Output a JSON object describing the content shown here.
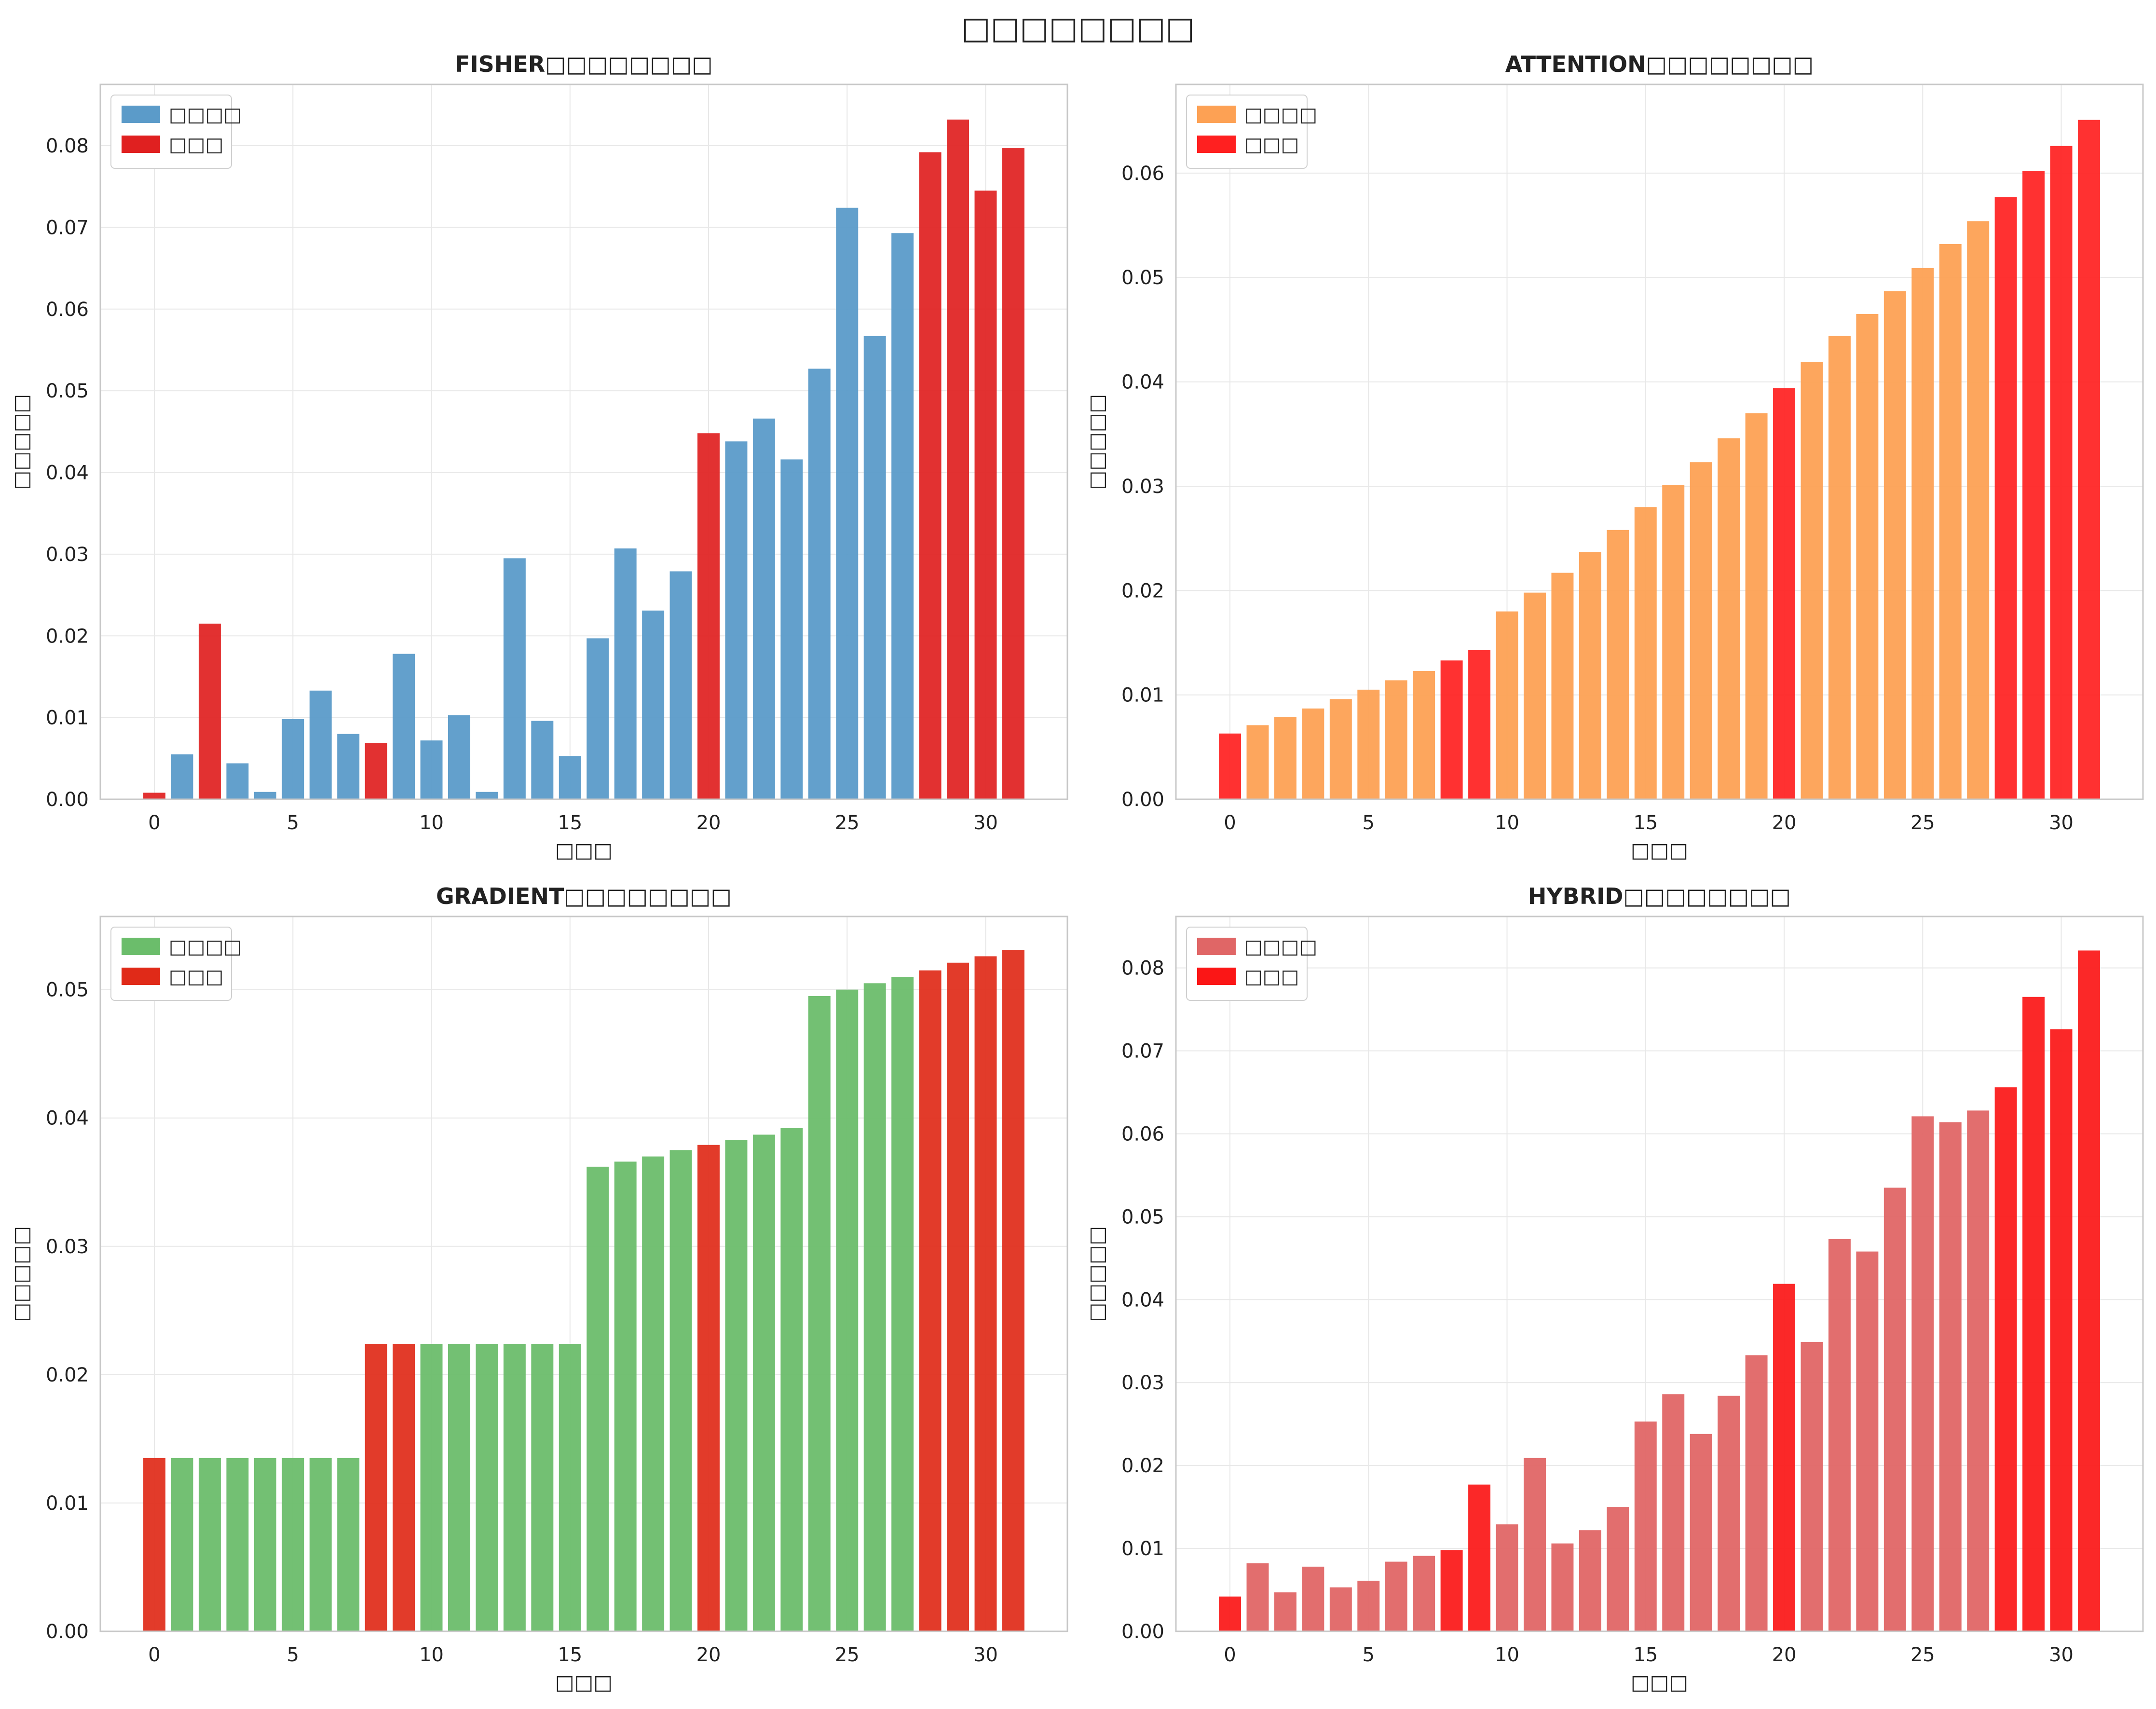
{
  "figure": {
    "title": "□□□□□□□□"
  },
  "chart_data": [
    {
      "type": "bar",
      "title": "FISHER□□□□□□□□",
      "xlabel": "□□□",
      "ylabel": "□□□□□",
      "ylim": [
        0,
        0.0875
      ],
      "yticks": [
        0.0,
        0.01,
        0.02,
        0.03,
        0.04,
        0.05,
        0.06,
        0.07,
        0.08
      ],
      "xlim": [
        -1.95,
        32.95
      ],
      "xticks": [
        0,
        5,
        10,
        15,
        20,
        25,
        30
      ],
      "grid": true,
      "legend": {
        "position": "top-left",
        "entries": [
          "□□□□",
          "□□□"
        ]
      },
      "colors": {
        "base": "#5b9bc9",
        "selected": "#e02020"
      },
      "categories": [
        0,
        1,
        2,
        3,
        4,
        5,
        6,
        7,
        8,
        9,
        10,
        11,
        12,
        13,
        14,
        15,
        16,
        17,
        18,
        19,
        20,
        21,
        22,
        23,
        24,
        25,
        26,
        27,
        28,
        29,
        30,
        31
      ],
      "values": [
        0.0008,
        0.0055,
        0.0215,
        0.0044,
        0.0009,
        0.0098,
        0.0133,
        0.008,
        0.0069,
        0.0178,
        0.0072,
        0.0103,
        0.0009,
        0.0295,
        0.0096,
        0.0053,
        0.0197,
        0.0307,
        0.0231,
        0.0279,
        0.0448,
        0.0438,
        0.0466,
        0.0416,
        0.0527,
        0.0724,
        0.0567,
        0.0693,
        0.0792,
        0.0832,
        0.0745,
        0.0797
      ],
      "selected": [
        0,
        2,
        8,
        20,
        28,
        29,
        30,
        31
      ]
    },
    {
      "type": "bar",
      "title": "ATTENTION□□□□□□□□",
      "xlabel": "□□□",
      "ylabel": "□□□□□",
      "ylim": [
        0,
        0.0685
      ],
      "yticks": [
        0.0,
        0.01,
        0.02,
        0.03,
        0.04,
        0.05,
        0.06
      ],
      "xlim": [
        -1.95,
        32.95
      ],
      "xticks": [
        0,
        5,
        10,
        15,
        20,
        25,
        30
      ],
      "grid": true,
      "legend": {
        "position": "top-left",
        "entries": [
          "□□□□",
          "□□□"
        ]
      },
      "colors": {
        "base": "#fda154",
        "selected": "#ff2020"
      },
      "categories": [
        0,
        1,
        2,
        3,
        4,
        5,
        6,
        7,
        8,
        9,
        10,
        11,
        12,
        13,
        14,
        15,
        16,
        17,
        18,
        19,
        20,
        21,
        22,
        23,
        24,
        25,
        26,
        27,
        28,
        29,
        30,
        31
      ],
      "values": [
        0.0063,
        0.0071,
        0.0079,
        0.0087,
        0.0096,
        0.0105,
        0.0114,
        0.0123,
        0.0133,
        0.0143,
        0.018,
        0.0198,
        0.0217,
        0.0237,
        0.0258,
        0.028,
        0.0301,
        0.0323,
        0.0346,
        0.037,
        0.0394,
        0.0419,
        0.0444,
        0.0465,
        0.0487,
        0.0509,
        0.0532,
        0.0554,
        0.0577,
        0.0602,
        0.0626,
        0.0651
      ],
      "selected": [
        0,
        8,
        9,
        20,
        28,
        29,
        30,
        31
      ]
    },
    {
      "type": "bar",
      "title": "GRADIENT□□□□□□□□",
      "xlabel": "□□□",
      "ylabel": "□□□□□",
      "ylim": [
        0,
        0.0557
      ],
      "yticks": [
        0.0,
        0.01,
        0.02,
        0.03,
        0.04,
        0.05
      ],
      "xlim": [
        -1.95,
        32.95
      ],
      "xticks": [
        0,
        5,
        10,
        15,
        20,
        25,
        30
      ],
      "grid": true,
      "legend": {
        "position": "top-left",
        "entries": [
          "□□□□",
          "□□□"
        ]
      },
      "colors": {
        "base": "#6bbd6b",
        "selected": "#e02a18"
      },
      "categories": [
        0,
        1,
        2,
        3,
        4,
        5,
        6,
        7,
        8,
        9,
        10,
        11,
        12,
        13,
        14,
        15,
        16,
        17,
        18,
        19,
        20,
        21,
        22,
        23,
        24,
        25,
        26,
        27,
        28,
        29,
        30,
        31
      ],
      "values": [
        0.0135,
        0.0135,
        0.0135,
        0.0135,
        0.0135,
        0.0135,
        0.0135,
        0.0135,
        0.0224,
        0.0224,
        0.0224,
        0.0224,
        0.0224,
        0.0224,
        0.0224,
        0.0224,
        0.0362,
        0.0366,
        0.037,
        0.0375,
        0.0379,
        0.0383,
        0.0387,
        0.0392,
        0.0495,
        0.05,
        0.0505,
        0.051,
        0.0515,
        0.0521,
        0.0526,
        0.0531
      ],
      "selected": [
        0,
        8,
        9,
        20,
        28,
        29,
        30,
        31
      ]
    },
    {
      "type": "bar",
      "title": "HYBRID□□□□□□□□",
      "xlabel": "□□□",
      "ylabel": "□□□□□",
      "ylim": [
        0,
        0.0862
      ],
      "yticks": [
        0.0,
        0.01,
        0.02,
        0.03,
        0.04,
        0.05,
        0.06,
        0.07,
        0.08
      ],
      "xlim": [
        -1.95,
        32.95
      ],
      "xticks": [
        0,
        5,
        10,
        15,
        20,
        25,
        30
      ],
      "grid": true,
      "legend": {
        "position": "top-left",
        "entries": [
          "□□□□",
          "□□□"
        ]
      },
      "colors": {
        "base": "#e06666",
        "selected": "#fb1616"
      },
      "categories": [
        0,
        1,
        2,
        3,
        4,
        5,
        6,
        7,
        8,
        9,
        10,
        11,
        12,
        13,
        14,
        15,
        16,
        17,
        18,
        19,
        20,
        21,
        22,
        23,
        24,
        25,
        26,
        27,
        28,
        29,
        30,
        31
      ],
      "values": [
        0.0042,
        0.0082,
        0.0047,
        0.0078,
        0.0053,
        0.0061,
        0.0084,
        0.0091,
        0.0098,
        0.0177,
        0.0129,
        0.0209,
        0.0106,
        0.0122,
        0.015,
        0.0253,
        0.0286,
        0.0238,
        0.0284,
        0.0333,
        0.0419,
        0.0349,
        0.0473,
        0.0458,
        0.0535,
        0.0621,
        0.0614,
        0.0628,
        0.0656,
        0.0765,
        0.0726,
        0.0821
      ],
      "selected": [
        0,
        8,
        9,
        20,
        28,
        29,
        30,
        31
      ]
    }
  ]
}
